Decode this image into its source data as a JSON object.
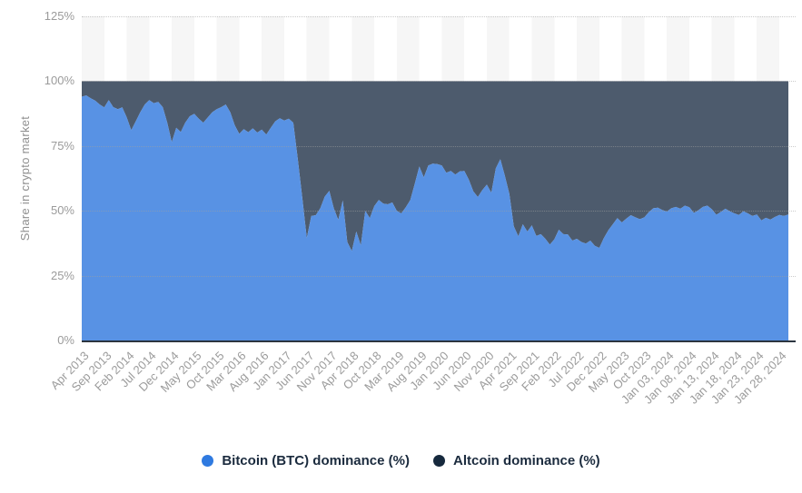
{
  "colors": {
    "btc_area": "#5892e4",
    "alt_area": "#4d5b6d",
    "btc_legend_dot": "#2f7ae0",
    "alt_legend_dot": "#16293d",
    "axis_label": "#9b9b9b",
    "baseline": "#2c3540",
    "legend_text": "#1b2b3e"
  },
  "legend": {
    "items": [
      {
        "label": "Bitcoin (BTC) dominance (%)",
        "series": "btc"
      },
      {
        "label": "Altcoin dominance (%)",
        "series": "alt"
      }
    ]
  },
  "chart_data": {
    "type": "area",
    "stacked": true,
    "stack_total": 100,
    "title": "",
    "xlabel": "",
    "ylabel": "Share in crypto market",
    "ylim": [
      0,
      125
    ],
    "y_tick_labels": [
      "0%",
      "25%",
      "50%",
      "75%",
      "100%",
      "125%"
    ],
    "y_tick_values": [
      0,
      25,
      50,
      75,
      100,
      125
    ],
    "grid": "horizontal-dotted",
    "legend_position": "bottom-center",
    "x_tick_labels": [
      "Apr 2013",
      "Sep 2013",
      "Feb 2014",
      "Jul 2014",
      "Dec 2014",
      "May 2015",
      "Oct 2015",
      "Mar 2016",
      "Aug 2016",
      "Jan 2017",
      "Jun 2017",
      "Nov 2017",
      "Apr 2018",
      "Oct 2018",
      "Mar 2019",
      "Aug 2019",
      "Jan 2020",
      "Jun 2020",
      "Nov 2020",
      "Apr 2021",
      "Sep 2021",
      "Feb 2022",
      "Jul 2022",
      "Dec 2022",
      "May 2023",
      "Oct 2023",
      "Jan 03, 2024",
      "Jan 08, 2024",
      "Jan 13, 2024",
      "Jan 18, 2024",
      "Jan 23, 2024",
      "Jan 28, 2024"
    ],
    "x_ticks_every_n_points": 5,
    "series": [
      {
        "name": "Bitcoin (BTC) dominance (%)",
        "unit": "%",
        "values": [
          94.0,
          94.5,
          93.4,
          92.5,
          91.0,
          89.9,
          92.7,
          90.0,
          89.2,
          89.9,
          86.0,
          81.1,
          84.5,
          88.0,
          91.0,
          92.7,
          91.5,
          92.0,
          90.0,
          84.0,
          76.5,
          82.0,
          80.4,
          84.0,
          86.5,
          87.4,
          85.5,
          84.0,
          86.0,
          88.0,
          89.2,
          90.0,
          91.0,
          88.0,
          83.0,
          79.7,
          81.5,
          80.3,
          81.8,
          80.2,
          81.3,
          79.4,
          82.0,
          84.5,
          85.7,
          84.8,
          85.5,
          84.0,
          70.0,
          55.0,
          39.5,
          48.0,
          48.3,
          51.0,
          55.5,
          57.7,
          51.0,
          46.5,
          54.0,
          38.0,
          34.5,
          42.0,
          36.7,
          50.0,
          47.2,
          51.8,
          54.2,
          52.8,
          52.5,
          53.2,
          50.0,
          49.0,
          51.4,
          54.2,
          60.5,
          67.1,
          62.9,
          67.5,
          68.2,
          68.0,
          67.5,
          64.7,
          65.4,
          64.0,
          65.2,
          65.4,
          62.0,
          57.5,
          55.3,
          58.0,
          60.1,
          57.0,
          66.4,
          69.9,
          63.6,
          56.6,
          44.0,
          40.2,
          44.8,
          42.0,
          44.4,
          40.3,
          41.0,
          39.2,
          37.0,
          39.0,
          42.7,
          41.0,
          40.9,
          38.5,
          39.2,
          38.0,
          37.4,
          38.5,
          36.5,
          35.7,
          39.5,
          42.5,
          44.8,
          47.2,
          45.5,
          47.0,
          48.3,
          47.5,
          46.8,
          47.5,
          49.5,
          51.0,
          51.2,
          50.3,
          49.7,
          51.0,
          51.5,
          50.8,
          52.0,
          51.4,
          49.2,
          50.2,
          51.5,
          52.0,
          50.6,
          48.5,
          49.6,
          50.8,
          49.8,
          49.0,
          48.4,
          49.8,
          49.0,
          48.0,
          48.6,
          46.3,
          47.3,
          46.6,
          47.6,
          48.4,
          48.0,
          48.6
        ]
      },
      {
        "name": "Altcoin dominance (%)",
        "unit": "%",
        "derived": "stack_total minus Bitcoin (BTC) dominance"
      }
    ]
  }
}
